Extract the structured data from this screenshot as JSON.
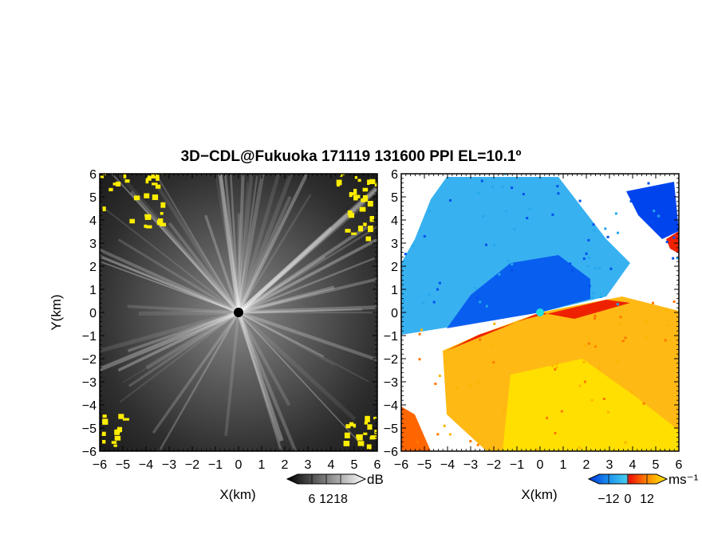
{
  "figure": {
    "title": "3D−CDL@Fukuoka 171119 131600 PPI EL=10.1º"
  },
  "colors": {
    "echo_yellow": "#ffee00",
    "velocity_blue": "#0044ee",
    "velocity_cyan": "#22b6ee",
    "velocity_red": "#ee2200",
    "velocity_orange": "#ff9900",
    "velocity_yellow": "#ffdd00",
    "radar_center": "#555555",
    "velocity_center": "#22dddd"
  },
  "chart_data": [
    {
      "type": "heatmap",
      "panel": "reflectivity",
      "xlabel": "X(km)",
      "ylabel": "Y(km)",
      "xlim": [
        -6,
        6
      ],
      "ylim": [
        -6,
        6
      ],
      "xticks": [
        "−6",
        "−5",
        "−4",
        "−3",
        "−2",
        "−1",
        "0",
        "1",
        "2",
        "3",
        "4",
        "5",
        "6"
      ],
      "yticks": [
        "−6",
        "−5",
        "−4",
        "−3",
        "−2",
        "−1",
        "0",
        "1",
        "2",
        "3",
        "4",
        "5",
        "6"
      ],
      "colorbar": {
        "unit": "dB",
        "ticks": [
          "6",
          "12",
          "18"
        ],
        "range": [
          0,
          24
        ],
        "scheme": "grayscale"
      },
      "grid": false
    },
    {
      "type": "heatmap",
      "panel": "radial_velocity",
      "xlabel": "X(km)",
      "xlim": [
        -6,
        6
      ],
      "ylim": [
        -6,
        6
      ],
      "xticks": [
        "−6",
        "−5",
        "−4",
        "−3",
        "−2",
        "−1",
        "0",
        "1",
        "2",
        "3",
        "4",
        "5",
        "6"
      ],
      "yticks": [
        "−6",
        "−5",
        "−4",
        "−3",
        "−2",
        "−1",
        "0",
        "1",
        "2",
        "3",
        "4",
        "5",
        "6"
      ],
      "colorbar": {
        "unit": "ms⁻¹",
        "ticks": [
          "−12",
          "0",
          "12"
        ],
        "range": [
          -18,
          18
        ],
        "scheme": "blue-cyan-red-orange-yellow"
      },
      "grid": false
    }
  ]
}
